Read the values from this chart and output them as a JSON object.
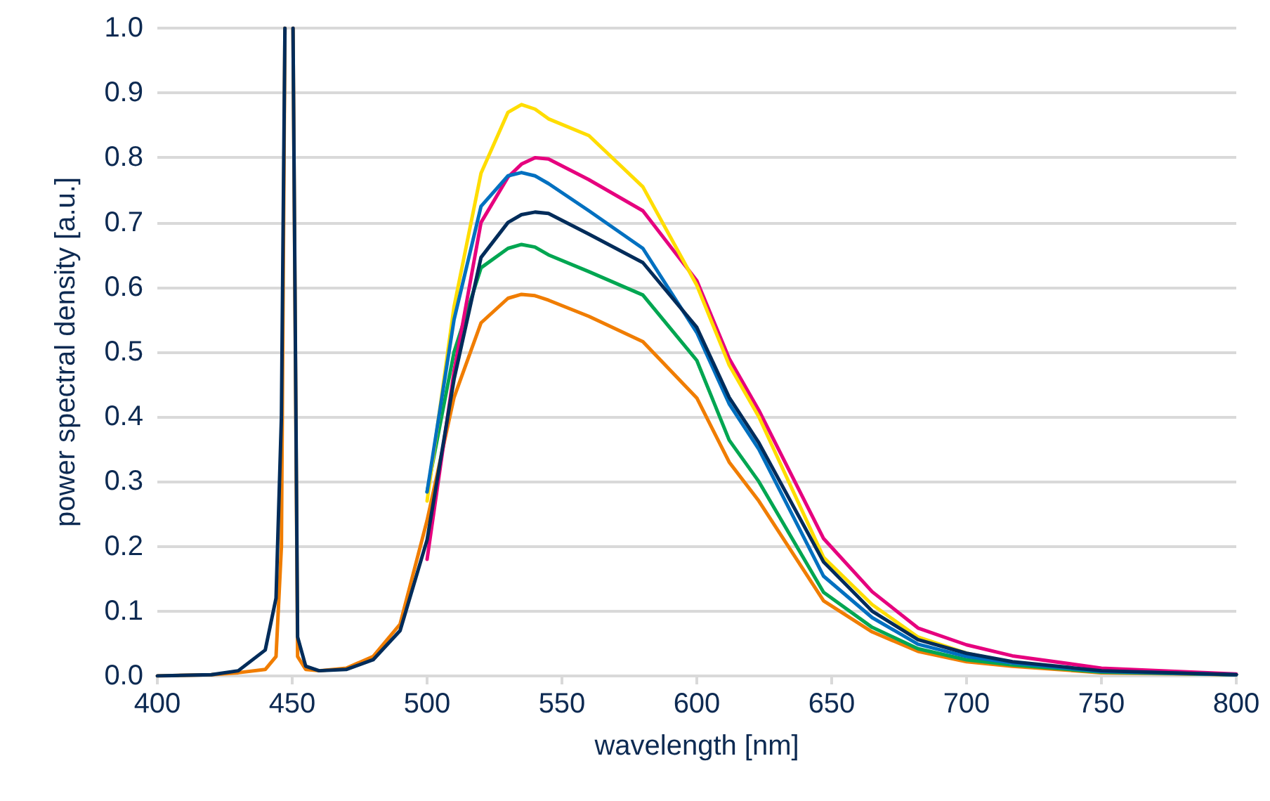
{
  "chart_data": {
    "type": "line",
    "xlabel": "wavelength [nm]",
    "ylabel": "power spectral density [a.u.]",
    "x": [
      400,
      420,
      430,
      440,
      444,
      446,
      447.3,
      448.8,
      450.3,
      452,
      455,
      460,
      470,
      480,
      490,
      500,
      510,
      520,
      530,
      535,
      540,
      545,
      560,
      580,
      600,
      612,
      623,
      647,
      665,
      682,
      700,
      717,
      750,
      800
    ],
    "series": [
      {
        "color": "#f07d00",
        "values": [
          0,
          0.002,
          0.005,
          0.01,
          0.03,
          0.2,
          1.0,
          null,
          1.0,
          0.03,
          0.01,
          0.008,
          0.012,
          0.03,
          0.08,
          0.24,
          0.43,
          0.545,
          0.583,
          0.589,
          0.587,
          0.58,
          0.555,
          0.516,
          0.429,
          0.33,
          0.27,
          0.116,
          0.068,
          0.038,
          0.022,
          0.015,
          0.005,
          0.002
        ]
      },
      {
        "color": "#00a651",
        "values": [
          null,
          null,
          null,
          null,
          null,
          null,
          null,
          null,
          null,
          null,
          null,
          null,
          null,
          null,
          null,
          0.284,
          0.5,
          0.63,
          0.66,
          0.666,
          0.662,
          0.65,
          0.624,
          0.588,
          0.487,
          0.364,
          0.3,
          0.129,
          0.075,
          0.042,
          0.025,
          0.017,
          0.006,
          0.002
        ]
      },
      {
        "color": "#e6007e",
        "values": [
          null,
          null,
          null,
          null,
          null,
          null,
          null,
          null,
          null,
          null,
          null,
          null,
          null,
          null,
          null,
          0.18,
          0.47,
          0.7,
          0.77,
          0.79,
          0.8,
          0.798,
          0.766,
          0.718,
          0.61,
          0.49,
          0.41,
          0.212,
          0.13,
          0.074,
          0.048,
          0.031,
          0.012,
          0.003
        ]
      },
      {
        "color": "#ffdd00",
        "values": [
          null,
          null,
          null,
          null,
          null,
          null,
          null,
          null,
          null,
          null,
          null,
          null,
          null,
          null,
          null,
          0.27,
          0.57,
          0.776,
          0.87,
          0.882,
          0.875,
          0.86,
          0.834,
          0.755,
          0.603,
          0.48,
          0.4,
          0.183,
          0.11,
          0.06,
          0.035,
          0.02,
          null,
          null
        ]
      },
      {
        "color": "#0070c0",
        "values": [
          null,
          null,
          null,
          null,
          null,
          null,
          null,
          null,
          null,
          null,
          null,
          null,
          null,
          null,
          null,
          0.284,
          0.55,
          0.725,
          0.772,
          0.777,
          0.772,
          0.76,
          0.718,
          0.66,
          0.53,
          0.42,
          0.35,
          0.154,
          0.09,
          0.049,
          0.03,
          0.02,
          0.007,
          0.002
        ]
      },
      {
        "color": "#002c5a",
        "values": [
          0,
          0.002,
          0.008,
          0.04,
          0.12,
          0.4,
          1.0,
          null,
          1.0,
          0.06,
          0.015,
          0.008,
          0.01,
          0.025,
          0.07,
          0.21,
          0.458,
          0.646,
          0.7,
          0.712,
          0.716,
          0.714,
          0.682,
          0.638,
          0.538,
          0.43,
          0.36,
          0.176,
          0.1,
          0.056,
          0.035,
          0.022,
          0.008,
          0.002
        ]
      }
    ],
    "xlim": [
      400,
      800
    ],
    "xticks": [
      400,
      450,
      500,
      550,
      600,
      650,
      700,
      750,
      800
    ],
    "ylim": [
      0,
      1
    ],
    "yticks": [
      {
        "value": 0,
        "label": "0.0"
      },
      {
        "value": 0.1,
        "label": "0.1"
      },
      {
        "value": 0.2,
        "label": "0.2"
      },
      {
        "value": 0.3,
        "label": "0.3"
      },
      {
        "value": 0.4,
        "label": "0.4"
      },
      {
        "value": 0.5,
        "label": "0.5"
      },
      {
        "value": 0.6,
        "label": "0.6"
      },
      {
        "value": 0.7,
        "label": "0.7"
      },
      {
        "value": 0.8,
        "label": "0.8"
      },
      {
        "value": 0.9,
        "label": "0.9"
      },
      {
        "value": 1,
        "label": "1.0"
      }
    ],
    "grid": "y",
    "marker": "none",
    "line_style": "solid"
  }
}
